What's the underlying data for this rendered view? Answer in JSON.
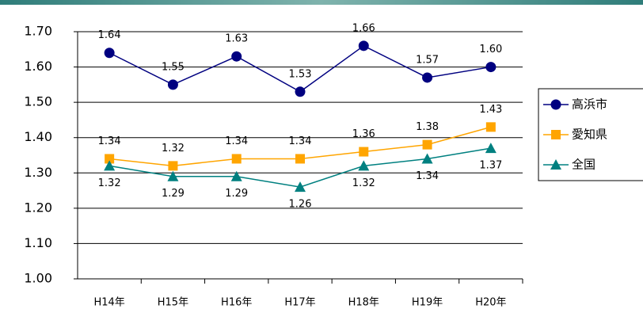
{
  "chart_data": {
    "type": "line",
    "categories": [
      "H14年",
      "H15年",
      "H16年",
      "H17年",
      "H18年",
      "H19年",
      "H20年"
    ],
    "series": [
      {
        "name": "高浜市",
        "color": "#000080",
        "marker": "circle",
        "label_position": "above",
        "values": [
          1.64,
          1.55,
          1.63,
          1.53,
          1.66,
          1.57,
          1.6
        ],
        "value_labels": [
          "1.64",
          "1.55",
          "1.63",
          "1.53",
          "1.66",
          "1.57",
          "1.60"
        ]
      },
      {
        "name": "愛知県",
        "color": "#ffa500",
        "marker": "square",
        "label_position": "above",
        "values": [
          1.34,
          1.32,
          1.34,
          1.34,
          1.36,
          1.38,
          1.43
        ],
        "value_labels": [
          "1.34",
          "1.32",
          "1.34",
          "1.34",
          "1.36",
          "1.38",
          "1.43"
        ]
      },
      {
        "name": "全国",
        "color": "#008080",
        "marker": "triangle",
        "label_position": "below",
        "values": [
          1.32,
          1.29,
          1.29,
          1.26,
          1.32,
          1.34,
          1.37
        ],
        "value_labels": [
          "1.32",
          "1.29",
          "1.29",
          "1.26",
          "1.32",
          "1.34",
          "1.37"
        ]
      }
    ],
    "ylim": [
      1.0,
      1.7
    ],
    "yticks": [
      {
        "value": 1.0,
        "label": "1.00"
      },
      {
        "value": 1.1,
        "label": "1.10"
      },
      {
        "value": 1.2,
        "label": "1.20"
      },
      {
        "value": 1.3,
        "label": "1.30"
      },
      {
        "value": 1.4,
        "label": "1.40"
      },
      {
        "value": 1.5,
        "label": "1.50"
      },
      {
        "value": 1.6,
        "label": "1.60"
      },
      {
        "value": 1.7,
        "label": "1.70"
      }
    ],
    "grid": true,
    "legend": "right"
  }
}
